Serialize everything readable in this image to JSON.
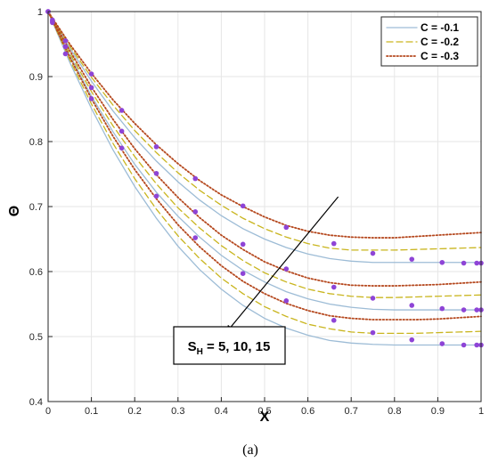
{
  "chart_data": {
    "type": "line",
    "xlabel": "X",
    "ylabel": "Θ",
    "xlim": [
      0,
      1
    ],
    "ylim": [
      0.4,
      1
    ],
    "xticks": [
      "0",
      "0.1",
      "0.2",
      "0.3",
      "0.4",
      "0.5",
      "0.6",
      "0.7",
      "0.8",
      "0.9",
      "1"
    ],
    "yticks": [
      "0.4",
      "0.5",
      "0.6",
      "0.7",
      "0.8",
      "0.9",
      "1"
    ],
    "grid": true,
    "legend_position": "top-right",
    "legend": [
      {
        "label": "C = -0.1",
        "color": "#9dbcd6",
        "style": "solid"
      },
      {
        "label": "C = -0.2",
        "color": "#c9b51e",
        "style": "dashed"
      },
      {
        "label": "C = -0.3",
        "color": "#b5481e",
        "style": "dotted"
      }
    ],
    "x": [
      0,
      0.05,
      0.1,
      0.15,
      0.2,
      0.25,
      0.3,
      0.35,
      0.4,
      0.45,
      0.5,
      0.55,
      0.6,
      0.65,
      0.7,
      0.75,
      0.8,
      0.85,
      0.9,
      0.95,
      1
    ],
    "series": [
      {
        "group": "S_H = 5",
        "style": "C = -0.1",
        "values": [
          1.0,
          0.944,
          0.893,
          0.847,
          0.806,
          0.77,
          0.738,
          0.71,
          0.686,
          0.666,
          0.65,
          0.637,
          0.627,
          0.62,
          0.616,
          0.614,
          0.614,
          0.614,
          0.614,
          0.614,
          0.614
        ]
      },
      {
        "group": "S_H = 5",
        "style": "C = -0.2",
        "values": [
          1.0,
          0.947,
          0.899,
          0.856,
          0.817,
          0.783,
          0.752,
          0.725,
          0.702,
          0.682,
          0.666,
          0.653,
          0.643,
          0.636,
          0.633,
          0.633,
          0.633,
          0.634,
          0.635,
          0.636,
          0.637
        ]
      },
      {
        "group": "S_H = 5",
        "style": "C = -0.3",
        "values": [
          1.0,
          0.95,
          0.905,
          0.864,
          0.828,
          0.795,
          0.766,
          0.74,
          0.718,
          0.7,
          0.684,
          0.671,
          0.662,
          0.656,
          0.653,
          0.652,
          0.652,
          0.654,
          0.656,
          0.658,
          0.66
        ]
      },
      {
        "group": "S_H = 10",
        "style": "C = -0.1",
        "values": [
          1.0,
          0.933,
          0.87,
          0.815,
          0.765,
          0.722,
          0.685,
          0.653,
          0.625,
          0.602,
          0.584,
          0.569,
          0.558,
          0.55,
          0.545,
          0.542,
          0.541,
          0.541,
          0.541,
          0.541,
          0.541
        ]
      },
      {
        "group": "S_H = 10",
        "style": "C = -0.2",
        "values": [
          1.0,
          0.936,
          0.877,
          0.824,
          0.777,
          0.735,
          0.698,
          0.667,
          0.64,
          0.617,
          0.598,
          0.584,
          0.573,
          0.566,
          0.562,
          0.56,
          0.56,
          0.561,
          0.562,
          0.563,
          0.564
        ]
      },
      {
        "group": "S_H = 10",
        "style": "C = -0.3",
        "values": [
          1.0,
          0.94,
          0.884,
          0.834,
          0.789,
          0.749,
          0.714,
          0.683,
          0.656,
          0.634,
          0.615,
          0.601,
          0.59,
          0.583,
          0.579,
          0.578,
          0.578,
          0.579,
          0.58,
          0.582,
          0.584
        ]
      },
      {
        "group": "S_H = 15",
        "style": "C = -0.1",
        "values": [
          1.0,
          0.922,
          0.851,
          0.787,
          0.731,
          0.682,
          0.639,
          0.603,
          0.573,
          0.548,
          0.528,
          0.513,
          0.502,
          0.494,
          0.49,
          0.488,
          0.487,
          0.487,
          0.487,
          0.487,
          0.487
        ]
      },
      {
        "group": "S_H = 15",
        "style": "C = -0.2",
        "values": [
          1.0,
          0.926,
          0.858,
          0.797,
          0.743,
          0.696,
          0.655,
          0.62,
          0.59,
          0.566,
          0.546,
          0.531,
          0.519,
          0.512,
          0.507,
          0.505,
          0.505,
          0.505,
          0.506,
          0.507,
          0.508
        ]
      },
      {
        "group": "S_H = 15",
        "style": "C = -0.3",
        "values": [
          1.0,
          0.93,
          0.866,
          0.808,
          0.757,
          0.712,
          0.672,
          0.638,
          0.609,
          0.585,
          0.566,
          0.551,
          0.54,
          0.532,
          0.528,
          0.526,
          0.526,
          0.526,
          0.527,
          0.529,
          0.531
        ]
      }
    ],
    "markers": [
      {
        "group": "S_H = 5",
        "color": "#8e44d6",
        "points": [
          [
            0.0,
            1.0
          ],
          [
            0.01,
            0.987
          ],
          [
            0.04,
            0.955
          ],
          [
            0.1,
            0.904
          ],
          [
            0.17,
            0.848
          ],
          [
            0.25,
            0.792
          ],
          [
            0.34,
            0.743
          ],
          [
            0.45,
            0.701
          ],
          [
            0.55,
            0.668
          ],
          [
            0.66,
            0.643
          ],
          [
            0.75,
            0.628
          ],
          [
            0.84,
            0.619
          ],
          [
            0.91,
            0.614
          ],
          [
            0.96,
            0.613
          ],
          [
            0.99,
            0.613
          ],
          [
            1.0,
            0.613
          ]
        ]
      },
      {
        "group": "S_H = 10",
        "color": "#8e44d6",
        "points": [
          [
            0.0,
            1.0
          ],
          [
            0.01,
            0.985
          ],
          [
            0.04,
            0.946
          ],
          [
            0.1,
            0.883
          ],
          [
            0.17,
            0.816
          ],
          [
            0.25,
            0.751
          ],
          [
            0.34,
            0.692
          ],
          [
            0.45,
            0.642
          ],
          [
            0.55,
            0.604
          ],
          [
            0.66,
            0.576
          ],
          [
            0.75,
            0.559
          ],
          [
            0.84,
            0.548
          ],
          [
            0.91,
            0.543
          ],
          [
            0.96,
            0.541
          ],
          [
            0.99,
            0.541
          ],
          [
            1.0,
            0.541
          ]
        ]
      },
      {
        "group": "S_H = 15",
        "color": "#8e44d6",
        "points": [
          [
            0.0,
            1.0
          ],
          [
            0.01,
            0.983
          ],
          [
            0.04,
            0.935
          ],
          [
            0.1,
            0.866
          ],
          [
            0.17,
            0.79
          ],
          [
            0.25,
            0.716
          ],
          [
            0.34,
            0.652
          ],
          [
            0.45,
            0.597
          ],
          [
            0.55,
            0.555
          ],
          [
            0.66,
            0.525
          ],
          [
            0.75,
            0.506
          ],
          [
            0.84,
            0.495
          ],
          [
            0.91,
            0.489
          ],
          [
            0.96,
            0.487
          ],
          [
            0.99,
            0.487
          ],
          [
            1.0,
            0.487
          ]
        ]
      }
    ],
    "annotation": {
      "label_prefix": "S",
      "label_sub": "H",
      "label_rest": " = 5, 10, 15",
      "arrow_from": [
        0.67,
        0.715
      ],
      "arrow_to": [
        0.41,
        0.505
      ]
    },
    "caption_parts": [
      "(",
      "a",
      ")"
    ]
  }
}
